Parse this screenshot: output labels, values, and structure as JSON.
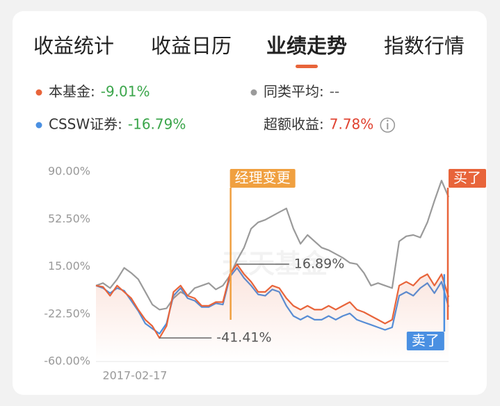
{
  "tabs": [
    "收益统计",
    "收益日历",
    "业绩走势",
    "指数行情"
  ],
  "active_tab": 2,
  "legend": {
    "excess_label": "超额收益:",
    "excess_value": "7.78%",
    "excess_color": "#e0412f"
  },
  "chart_data": {
    "type": "line",
    "categories": [
      "2017-02-17",
      null,
      null,
      null,
      null,
      null,
      null,
      null,
      null,
      null,
      null,
      null,
      null,
      null,
      null,
      null,
      null,
      null,
      null,
      null,
      null,
      null,
      null,
      null,
      null,
      null,
      null,
      null,
      null,
      null,
      null,
      null,
      null,
      null,
      null,
      null,
      null,
      null,
      null,
      null,
      null,
      null,
      null,
      null,
      null,
      null,
      null,
      null,
      null,
      null,
      null
    ],
    "series": [
      {
        "name": "本基金:",
        "summary": "-9.01%",
        "summary_color": "#3aa54a",
        "color": "#e8643a",
        "values": [
          0,
          -1,
          -8,
          0,
          -5,
          -10,
          -19,
          -27,
          -32,
          -41.41,
          -32,
          -5,
          0,
          -8,
          -10,
          -16,
          -16,
          -13,
          -13,
          9,
          16.89,
          9,
          3,
          -5,
          -5,
          0,
          -2,
          -10,
          -16,
          -19,
          -16,
          -19,
          -19,
          -16,
          -19,
          -16,
          -13,
          -19,
          -21,
          -24,
          -27,
          -30,
          -27,
          0,
          3,
          0,
          6,
          9,
          0,
          9,
          -9.01
        ],
        "max_label": "16.89%",
        "min_label": "-41.41%",
        "area": true
      },
      {
        "name": "CSSW证券:",
        "summary": "-16.79%",
        "summary_color": "#3aa54a",
        "color": "#4a90e2",
        "values": [
          0,
          -2,
          -6,
          -2,
          -4,
          -12,
          -20,
          -30,
          -34,
          -38,
          -30,
          -8,
          -2,
          -10,
          -12,
          -17,
          -17,
          -14,
          -15,
          7,
          14,
          6,
          0,
          -7,
          -8,
          -3,
          -5,
          -16,
          -24,
          -27,
          -24,
          -27,
          -27,
          -24,
          -27,
          -24,
          -22,
          -27,
          -29,
          -31,
          -33,
          -35,
          -33,
          -8,
          -5,
          -8,
          -2,
          2,
          -6,
          3,
          -16.79
        ]
      },
      {
        "name": "同类平均:",
        "summary": "--",
        "summary_color": "#555555",
        "color": "#9a9a9a",
        "values": [
          0,
          2,
          -2,
          5,
          14,
          10,
          5,
          -5,
          -15,
          -19,
          -18,
          -10,
          -5,
          -8,
          -2,
          0,
          2,
          -3,
          0,
          8,
          20,
          30,
          45,
          50,
          52,
          55,
          58,
          61,
          45,
          33,
          40,
          35,
          30,
          28,
          25,
          22,
          18,
          17,
          10,
          0,
          2,
          0,
          -2,
          35,
          39,
          40,
          38,
          50,
          67,
          83,
          70
        ]
      }
    ],
    "events": [
      {
        "label": "经理变更",
        "index": 19,
        "color": "#f0a040",
        "position": "top"
      },
      {
        "label": "买了",
        "index": 50,
        "color": "#e8643a",
        "position": "top"
      },
      {
        "label": "卖了",
        "index": 49,
        "color": "#4a90e2",
        "position": "bottom"
      }
    ],
    "watermark": "天天基金",
    "ylim": [
      -60,
      90
    ],
    "yticks": [
      {
        "value": 90,
        "label": "90.00%"
      },
      {
        "value": 52.5,
        "label": "52.50%"
      },
      {
        "value": 15,
        "label": "15.00%"
      },
      {
        "value": -22.5,
        "label": "-22.50%"
      },
      {
        "value": -60,
        "label": "-60.00%"
      }
    ],
    "grid": false
  }
}
